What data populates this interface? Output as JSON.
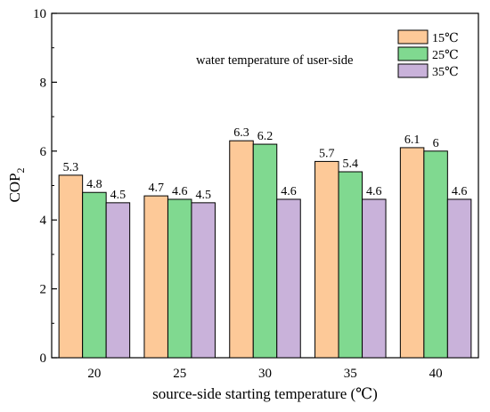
{
  "chart_data": {
    "type": "bar",
    "categories": [
      "20",
      "25",
      "30",
      "35",
      "40"
    ],
    "series": [
      {
        "name": "15℃",
        "values": [
          5.3,
          4.7,
          6.3,
          5.7,
          6.1
        ],
        "labels": [
          "5.3",
          "4.7",
          "6.3",
          "5.7",
          "6.1"
        ],
        "color": "#fdc998"
      },
      {
        "name": "25℃",
        "values": [
          4.8,
          4.6,
          6.2,
          5.4,
          6.0
        ],
        "labels": [
          "4.8",
          "4.6",
          "6.2",
          "5.4",
          "6"
        ],
        "color": "#80d990"
      },
      {
        "name": "35℃",
        "values": [
          4.5,
          4.5,
          4.6,
          4.6,
          4.6
        ],
        "labels": [
          "4.5",
          "4.5",
          "4.6",
          "4.6",
          "4.6"
        ],
        "color": "#c9b2da"
      }
    ],
    "xlabel": "source-side starting temperature (℃)",
    "ylabel": {
      "main": "COP",
      "sub": "2"
    },
    "ylim": [
      0,
      10
    ],
    "yticks": [
      "0",
      "2",
      "4",
      "6",
      "8",
      "10"
    ],
    "legend_title": "water temperature of user-side",
    "legend_position": "top-right",
    "grid": false
  }
}
